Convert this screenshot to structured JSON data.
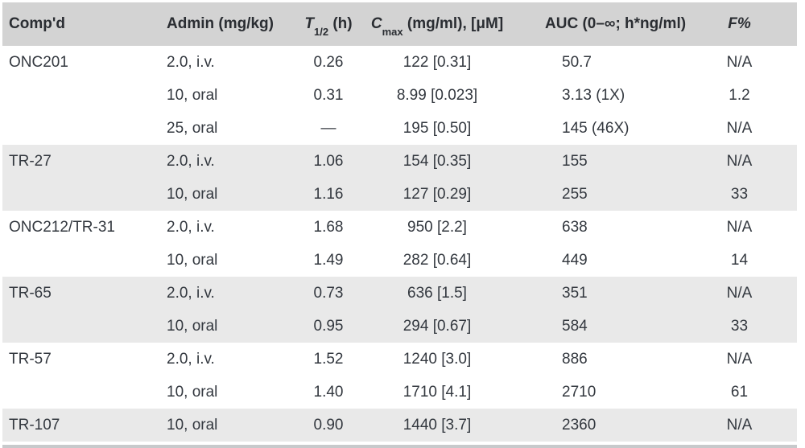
{
  "table": {
    "header": {
      "compound": {
        "text": "Comp'd"
      },
      "admin": {
        "text": "Admin (mg/kg)"
      },
      "thalf": {
        "italic": "T",
        "sub": "1/2",
        "rest": " (h)"
      },
      "cmax": {
        "italic": "C",
        "sub": "max",
        "rest": " (mg/ml), [μM]"
      },
      "auc": {
        "text": "AUC (0–∞; h*ng/ml)"
      },
      "f": {
        "italic": "F%"
      }
    },
    "rows": [
      {
        "compound": "ONC201",
        "admin": "2.0, i.v.",
        "thalf": "0.26",
        "cmax": "122 [0.31]",
        "auc": "50.7",
        "f": "N/A",
        "group": 0
      },
      {
        "compound": "",
        "admin": "10, oral",
        "thalf": "0.31",
        "cmax": "8.99 [0.023]",
        "auc": "3.13 (1X)",
        "f": "1.2",
        "group": 0
      },
      {
        "compound": "",
        "admin": "25, oral",
        "thalf": "—",
        "cmax": "195 [0.50]",
        "auc": "145 (46X)",
        "f": "N/A",
        "group": 0
      },
      {
        "compound": "TR-27",
        "admin": "2.0, i.v.",
        "thalf": "1.06",
        "cmax": "154 [0.35]",
        "auc": "155",
        "f": "N/A",
        "group": 1
      },
      {
        "compound": "",
        "admin": "10, oral",
        "thalf": "1.16",
        "cmax": "127 [0.29]",
        "auc": "255",
        "f": "33",
        "group": 1
      },
      {
        "compound": "ONC212/TR-31",
        "admin": "2.0, i.v.",
        "thalf": "1.68",
        "cmax": "950 [2.2]",
        "auc": "638",
        "f": "N/A",
        "group": 2
      },
      {
        "compound": "",
        "admin": "10, oral",
        "thalf": "1.49",
        "cmax": "282 [0.64]",
        "auc": "449",
        "f": "14",
        "group": 2
      },
      {
        "compound": "TR-65",
        "admin": "2.0, i.v.",
        "thalf": "0.73",
        "cmax": "636 [1.5]",
        "auc": "351",
        "f": "N/A",
        "group": 3
      },
      {
        "compound": "",
        "admin": "10, oral",
        "thalf": "0.95",
        "cmax": "294 [0.67]",
        "auc": "584",
        "f": "33",
        "group": 3
      },
      {
        "compound": "TR-57",
        "admin": "2.0, i.v.",
        "thalf": "1.52",
        "cmax": "1240 [3.0]",
        "auc": "886",
        "f": "N/A",
        "group": 4
      },
      {
        "compound": "",
        "admin": "10, oral",
        "thalf": "1.40",
        "cmax": "1710 [4.1]",
        "auc": "2710",
        "f": "61",
        "group": 4
      },
      {
        "compound": "TR-107",
        "admin": "10, oral",
        "thalf": "0.90",
        "cmax": "1440 [3.7]",
        "auc": "2360",
        "f": "N/A",
        "group": 5
      }
    ]
  },
  "colors": {
    "header_bg": "#d3d3d3",
    "stripe_bg": "#e9e9e9",
    "row_bg": "#ffffff",
    "bottom_bar": "#c7c9cb",
    "text": "#33383f",
    "header_text": "#2a2d32"
  }
}
